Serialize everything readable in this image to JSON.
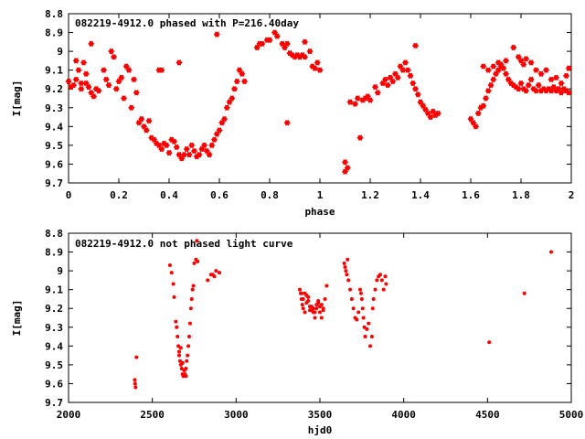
{
  "chart_data": [
    {
      "type": "scatter",
      "title": "082219-4912.0 phased with P=216.40day",
      "xlabel": "phase",
      "ylabel": "I[mag]",
      "xlim": [
        0,
        2
      ],
      "ylim": [
        8.8,
        9.7
      ],
      "y_inverted": true,
      "grid": false,
      "marker_color": "#ff0000",
      "xticks": [
        "0",
        "0.2",
        "0.4",
        "0.6",
        "0.8",
        "1",
        "1.2",
        "1.4",
        "1.6",
        "1.8",
        "2"
      ],
      "yticks": [
        "8.8",
        "8.9",
        "9",
        "9.1",
        "9.2",
        "9.3",
        "9.4",
        "9.5",
        "9.6",
        "9.7"
      ],
      "points": [
        [
          0.0,
          9.16
        ],
        [
          0.01,
          9.19
        ],
        [
          0.02,
          9.18
        ],
        [
          0.03,
          9.15
        ],
        [
          0.03,
          9.05
        ],
        [
          0.04,
          9.1
        ],
        [
          0.05,
          9.17
        ],
        [
          0.05,
          9.2
        ],
        [
          0.06,
          9.06
        ],
        [
          0.07,
          9.12
        ],
        [
          0.07,
          9.17
        ],
        [
          0.08,
          9.19
        ],
        [
          0.09,
          9.22
        ],
        [
          0.1,
          9.24
        ],
        [
          0.11,
          9.2
        ],
        [
          0.12,
          9.21
        ],
        [
          0.09,
          8.96
        ],
        [
          0.14,
          9.1
        ],
        [
          0.15,
          9.15
        ],
        [
          0.16,
          9.18
        ],
        [
          0.17,
          9.0
        ],
        [
          0.18,
          9.03
        ],
        [
          0.19,
          9.2
        ],
        [
          0.2,
          9.16
        ],
        [
          0.21,
          9.14
        ],
        [
          0.22,
          9.25
        ],
        [
          0.23,
          9.08
        ],
        [
          0.24,
          9.1
        ],
        [
          0.25,
          9.3
        ],
        [
          0.26,
          9.15
        ],
        [
          0.27,
          9.22
        ],
        [
          0.28,
          9.38
        ],
        [
          0.29,
          9.36
        ],
        [
          0.3,
          9.4
        ],
        [
          0.31,
          9.42
        ],
        [
          0.32,
          9.37
        ],
        [
          0.33,
          9.46
        ],
        [
          0.34,
          9.47
        ],
        [
          0.35,
          9.49
        ],
        [
          0.36,
          9.5
        ],
        [
          0.37,
          9.52
        ],
        [
          0.38,
          9.49
        ],
        [
          0.39,
          9.5
        ],
        [
          0.4,
          9.54
        ],
        [
          0.41,
          9.47
        ],
        [
          0.42,
          9.48
        ],
        [
          0.43,
          9.51
        ],
        [
          0.44,
          9.55
        ],
        [
          0.45,
          9.57
        ],
        [
          0.46,
          9.55
        ],
        [
          0.47,
          9.52
        ],
        [
          0.48,
          9.55
        ],
        [
          0.49,
          9.5
        ],
        [
          0.5,
          9.53
        ],
        [
          0.51,
          9.56
        ],
        [
          0.52,
          9.55
        ],
        [
          0.53,
          9.52
        ],
        [
          0.54,
          9.5
        ],
        [
          0.55,
          9.53
        ],
        [
          0.56,
          9.55
        ],
        [
          0.57,
          9.5
        ],
        [
          0.58,
          9.47
        ],
        [
          0.59,
          9.44
        ],
        [
          0.6,
          9.42
        ],
        [
          0.61,
          9.38
        ],
        [
          0.62,
          9.36
        ],
        [
          0.63,
          9.3
        ],
        [
          0.64,
          9.27
        ],
        [
          0.65,
          9.25
        ],
        [
          0.66,
          9.2
        ],
        [
          0.67,
          9.16
        ],
        [
          0.68,
          9.1
        ],
        [
          0.69,
          9.12
        ],
        [
          0.7,
          9.16
        ],
        [
          0.36,
          9.1
        ],
        [
          0.37,
          9.1
        ],
        [
          0.44,
          9.06
        ],
        [
          0.59,
          8.91
        ],
        [
          0.75,
          8.98
        ],
        [
          0.76,
          8.96
        ],
        [
          0.77,
          8.96
        ],
        [
          0.79,
          8.94
        ],
        [
          0.8,
          8.94
        ],
        [
          0.82,
          8.9
        ],
        [
          0.83,
          8.92
        ],
        [
          0.85,
          8.96
        ],
        [
          0.86,
          8.98
        ],
        [
          0.87,
          8.96
        ],
        [
          0.87,
          9.38
        ],
        [
          0.88,
          9.01
        ],
        [
          0.89,
          9.02
        ],
        [
          0.9,
          9.03
        ],
        [
          0.91,
          9.02
        ],
        [
          0.92,
          9.03
        ],
        [
          0.93,
          9.02
        ],
        [
          0.94,
          9.03
        ],
        [
          0.94,
          8.95
        ],
        [
          0.96,
          9.0
        ],
        [
          0.97,
          9.08
        ],
        [
          0.98,
          9.09
        ],
        [
          0.99,
          9.06
        ],
        [
          1.0,
          9.1
        ],
        [
          1.1,
          9.59
        ],
        [
          1.11,
          9.62
        ],
        [
          1.1,
          9.64
        ],
        [
          1.12,
          9.27
        ],
        [
          1.14,
          9.28
        ],
        [
          1.15,
          9.25
        ],
        [
          1.16,
          9.46
        ],
        [
          1.17,
          9.26
        ],
        [
          1.18,
          9.25
        ],
        [
          1.19,
          9.24
        ],
        [
          1.2,
          9.26
        ],
        [
          1.22,
          9.19
        ],
        [
          1.23,
          9.22
        ],
        [
          1.25,
          9.17
        ],
        [
          1.26,
          9.15
        ],
        [
          1.27,
          9.18
        ],
        [
          1.28,
          9.14
        ],
        [
          1.29,
          9.16
        ],
        [
          1.3,
          9.12
        ],
        [
          1.31,
          9.14
        ],
        [
          1.32,
          9.08
        ],
        [
          1.33,
          9.1
        ],
        [
          1.34,
          9.06
        ],
        [
          1.35,
          9.1
        ],
        [
          1.36,
          9.13
        ],
        [
          1.37,
          9.17
        ],
        [
          1.38,
          9.2
        ],
        [
          1.39,
          9.23
        ],
        [
          1.4,
          9.27
        ],
        [
          1.41,
          9.29
        ],
        [
          1.42,
          9.31
        ],
        [
          1.43,
          9.33
        ],
        [
          1.44,
          9.35
        ],
        [
          1.45,
          9.32
        ],
        [
          1.46,
          9.34
        ],
        [
          1.47,
          9.33
        ],
        [
          1.38,
          8.97
        ],
        [
          1.6,
          9.36
        ],
        [
          1.61,
          9.38
        ],
        [
          1.62,
          9.4
        ],
        [
          1.63,
          9.33
        ],
        [
          1.64,
          9.3
        ],
        [
          1.65,
          9.29
        ],
        [
          1.66,
          9.25
        ],
        [
          1.67,
          9.21
        ],
        [
          1.68,
          9.18
        ],
        [
          1.69,
          9.15
        ],
        [
          1.7,
          9.12
        ],
        [
          1.71,
          9.1
        ],
        [
          1.72,
          9.08
        ],
        [
          1.73,
          9.09
        ],
        [
          1.74,
          9.12
        ],
        [
          1.75,
          9.15
        ],
        [
          1.76,
          9.17
        ],
        [
          1.77,
          9.18
        ],
        [
          1.78,
          9.19
        ],
        [
          1.79,
          9.2
        ],
        [
          1.8,
          9.17
        ],
        [
          1.81,
          9.2
        ],
        [
          1.82,
          9.21
        ],
        [
          1.83,
          9.18
        ],
        [
          1.84,
          9.15
        ],
        [
          1.85,
          9.2
        ],
        [
          1.86,
          9.21
        ],
        [
          1.87,
          9.18
        ],
        [
          1.88,
          9.21
        ],
        [
          1.89,
          9.2
        ],
        [
          1.9,
          9.21
        ],
        [
          1.91,
          9.2
        ],
        [
          1.92,
          9.21
        ],
        [
          1.93,
          9.19
        ],
        [
          1.94,
          9.21
        ],
        [
          1.95,
          9.2
        ],
        [
          1.96,
          9.22
        ],
        [
          1.97,
          9.2
        ],
        [
          1.98,
          9.21
        ],
        [
          1.99,
          9.22
        ],
        [
          1.65,
          9.08
        ],
        [
          1.67,
          9.1
        ],
        [
          1.69,
          9.08
        ],
        [
          1.71,
          9.06
        ],
        [
          1.72,
          9.07
        ],
        [
          1.74,
          9.05
        ],
        [
          1.79,
          9.03
        ],
        [
          1.8,
          9.05
        ],
        [
          1.82,
          9.04
        ],
        [
          1.84,
          9.06
        ],
        [
          1.86,
          9.1
        ],
        [
          1.88,
          9.12
        ],
        [
          1.9,
          9.1
        ],
        [
          1.92,
          9.15
        ],
        [
          1.94,
          9.14
        ],
        [
          1.96,
          9.17
        ],
        [
          1.98,
          9.13
        ],
        [
          1.99,
          9.09
        ],
        [
          1.81,
          9.07
        ],
        [
          1.77,
          8.98
        ]
      ]
    },
    {
      "type": "scatter",
      "title": "082219-4912.0 not phased light curve",
      "xlabel": "hjd0",
      "ylabel": "I[mag]",
      "xlim": [
        2000,
        5000
      ],
      "ylim": [
        8.8,
        9.7
      ],
      "y_inverted": true,
      "grid": false,
      "marker_color": "#ff0000",
      "xticks": [
        "2000",
        "2500",
        "3000",
        "3500",
        "4000",
        "4500",
        "5000"
      ],
      "yticks": [
        "8.8",
        "8.9",
        "9",
        "9.1",
        "9.2",
        "9.3",
        "9.4",
        "9.5",
        "9.6",
        "9.7"
      ],
      "points": [
        [
          2395,
          9.58
        ],
        [
          2397,
          9.6
        ],
        [
          2400,
          9.62
        ],
        [
          2405,
          9.46
        ],
        [
          2605,
          8.97
        ],
        [
          2615,
          9.01
        ],
        [
          2625,
          9.07
        ],
        [
          2630,
          9.14
        ],
        [
          2640,
          9.27
        ],
        [
          2645,
          9.3
        ],
        [
          2650,
          9.35
        ],
        [
          2655,
          9.4
        ],
        [
          2660,
          9.45
        ],
        [
          2665,
          9.48
        ],
        [
          2670,
          9.5
        ],
        [
          2675,
          9.52
        ],
        [
          2680,
          9.55
        ],
        [
          2685,
          9.56
        ],
        [
          2690,
          9.53
        ],
        [
          2695,
          9.55
        ],
        [
          2700,
          9.52
        ],
        [
          2705,
          9.48
        ],
        [
          2710,
          9.45
        ],
        [
          2715,
          9.4
        ],
        [
          2720,
          9.35
        ],
        [
          2725,
          9.28
        ],
        [
          2730,
          9.2
        ],
        [
          2735,
          9.15
        ],
        [
          2740,
          9.1
        ],
        [
          2745,
          9.08
        ],
        [
          2750,
          8.96
        ],
        [
          2760,
          8.94
        ],
        [
          2765,
          8.84
        ],
        [
          2770,
          8.95
        ],
        [
          2830,
          9.05
        ],
        [
          2850,
          9.02
        ],
        [
          2860,
          9.02
        ],
        [
          2870,
          9.03
        ],
        [
          2880,
          9.0
        ],
        [
          2900,
          9.01
        ],
        [
          2660,
          9.43
        ],
        [
          2670,
          9.41
        ],
        [
          2680,
          9.49
        ],
        [
          2700,
          9.56
        ],
        [
          3380,
          9.1
        ],
        [
          3385,
          9.12
        ],
        [
          3390,
          9.15
        ],
        [
          3395,
          9.18
        ],
        [
          3400,
          9.2
        ],
        [
          3410,
          9.22
        ],
        [
          3420,
          9.17
        ],
        [
          3430,
          9.14
        ],
        [
          3440,
          9.19
        ],
        [
          3450,
          9.21
        ],
        [
          3460,
          9.2
        ],
        [
          3470,
          9.22
        ],
        [
          3480,
          9.18
        ],
        [
          3490,
          9.16
        ],
        [
          3500,
          9.19
        ],
        [
          3510,
          9.25
        ],
        [
          3520,
          9.2
        ],
        [
          3530,
          9.15
        ],
        [
          3540,
          9.08
        ],
        [
          3390,
          9.12
        ],
        [
          3400,
          9.15
        ],
        [
          3410,
          9.12
        ],
        [
          3420,
          9.13
        ],
        [
          3430,
          9.16
        ],
        [
          3440,
          9.21
        ],
        [
          3450,
          9.19
        ],
        [
          3460,
          9.22
        ],
        [
          3470,
          9.25
        ],
        [
          3480,
          9.2
        ],
        [
          3490,
          9.17
        ],
        [
          3500,
          9.22
        ],
        [
          3510,
          9.18
        ],
        [
          3520,
          9.21
        ],
        [
          3645,
          8.96
        ],
        [
          3650,
          8.98
        ],
        [
          3655,
          9.0
        ],
        [
          3660,
          9.02
        ],
        [
          3665,
          8.94
        ],
        [
          3670,
          9.05
        ],
        [
          3680,
          9.1
        ],
        [
          3690,
          9.15
        ],
        [
          3700,
          9.2
        ],
        [
          3710,
          9.25
        ],
        [
          3720,
          9.26
        ],
        [
          3730,
          9.22
        ],
        [
          3740,
          9.1
        ],
        [
          3745,
          9.12
        ],
        [
          3750,
          9.15
        ],
        [
          3755,
          9.2
        ],
        [
          3760,
          9.25
        ],
        [
          3765,
          9.3
        ],
        [
          3770,
          9.35
        ],
        [
          3780,
          9.31
        ],
        [
          3790,
          9.28
        ],
        [
          3800,
          9.4
        ],
        [
          3810,
          9.35
        ],
        [
          3815,
          9.2
        ],
        [
          3820,
          9.15
        ],
        [
          3830,
          9.1
        ],
        [
          3840,
          9.05
        ],
        [
          3850,
          9.03
        ],
        [
          3860,
          9.02
        ],
        [
          3870,
          9.05
        ],
        [
          3880,
          9.1
        ],
        [
          3890,
          9.03
        ],
        [
          3895,
          9.07
        ],
        [
          4510,
          9.38
        ],
        [
          4720,
          9.12
        ],
        [
          4880,
          8.9
        ]
      ]
    }
  ]
}
